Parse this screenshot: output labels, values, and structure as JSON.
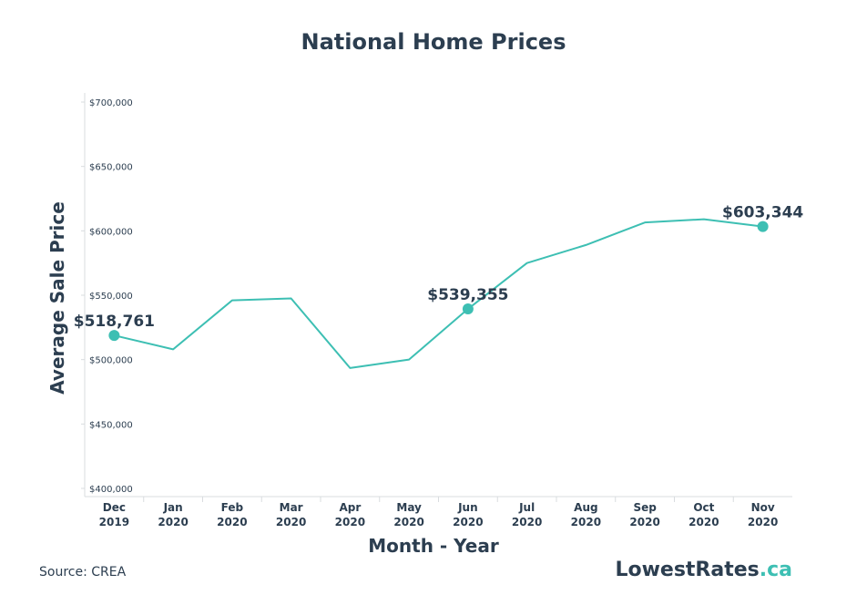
{
  "colors": {
    "line": "#3dbfb3",
    "text": "#2c3e50",
    "axis": "#d9dcdf",
    "brand_accent": "#3dbfb3"
  },
  "source": "Source: CREA",
  "brand": {
    "name": "LowestRates",
    "suffix": ".ca"
  },
  "chart_data": {
    "type": "line",
    "title": "National Home Prices",
    "xlabel": "Month - Year",
    "ylabel": "Average Sale Price",
    "ylim": [
      400000,
      700000
    ],
    "yticks": [
      400000,
      450000,
      500000,
      550000,
      600000,
      650000,
      700000
    ],
    "ytick_labels": [
      "$400,000",
      "$450,000",
      "$500,000",
      "$550,000",
      "$600,000",
      "$650,000",
      "$700,000"
    ],
    "categories": [
      [
        "Dec",
        "2019"
      ],
      [
        "Jan",
        "2020"
      ],
      [
        "Feb",
        "2020"
      ],
      [
        "Mar",
        "2020"
      ],
      [
        "Apr",
        "2020"
      ],
      [
        "May",
        "2020"
      ],
      [
        "Jun",
        "2020"
      ],
      [
        "Jul",
        "2020"
      ],
      [
        "Aug",
        "2020"
      ],
      [
        "Sep",
        "2020"
      ],
      [
        "Oct",
        "2020"
      ],
      [
        "Nov",
        "2020"
      ]
    ],
    "grid": false,
    "series": [
      {
        "values": [
          518761,
          508000,
          546000,
          547500,
          493500,
          500000,
          539355,
          575000,
          589000,
          606500,
          609000,
          603344
        ]
      }
    ],
    "annotations": [
      {
        "index": 0,
        "text": "$518,761"
      },
      {
        "index": 6,
        "text": "$539,355"
      },
      {
        "index": 11,
        "text": "$603,344"
      }
    ]
  }
}
